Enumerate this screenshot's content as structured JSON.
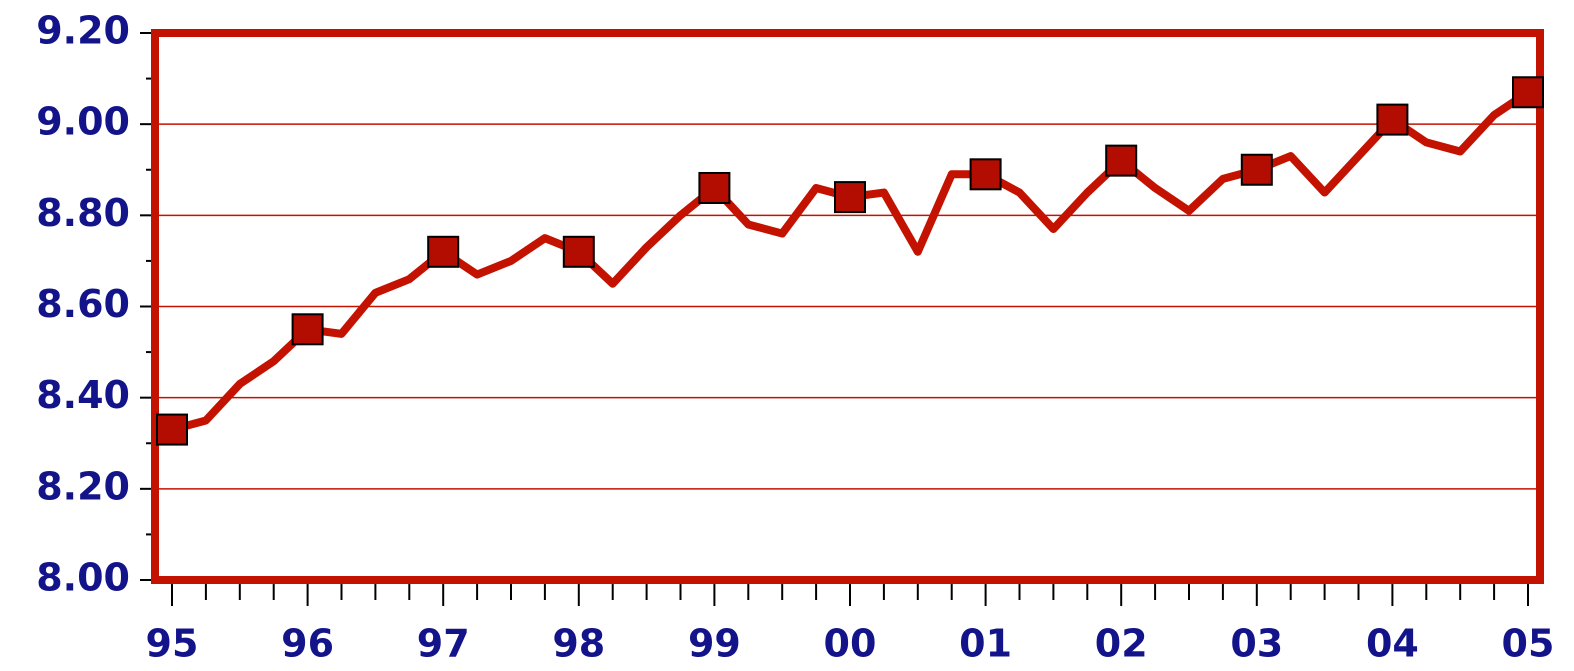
{
  "chart_data": {
    "type": "line",
    "categories": [
      "95",
      null,
      null,
      null,
      "96",
      null,
      null,
      null,
      "97",
      null,
      null,
      null,
      "98",
      null,
      null,
      null,
      "99",
      null,
      null,
      null,
      "00",
      null,
      null,
      null,
      "01",
      null,
      null,
      null,
      "02",
      null,
      null,
      null,
      "03",
      null,
      null,
      null,
      "04",
      null,
      null,
      null,
      "05"
    ],
    "series": [
      {
        "color": "#c41200",
        "marker_color": "#b30c00",
        "values": [
          8.33,
          8.35,
          8.43,
          8.48,
          8.55,
          8.54,
          8.63,
          8.66,
          8.72,
          8.67,
          8.7,
          8.75,
          8.72,
          8.65,
          8.73,
          8.8,
          8.86,
          8.78,
          8.76,
          8.86,
          8.84,
          8.85,
          8.72,
          8.89,
          8.89,
          8.85,
          8.77,
          8.85,
          8.92,
          8.86,
          8.81,
          8.88,
          8.9,
          8.93,
          8.85,
          8.93,
          9.01,
          8.96,
          8.94,
          9.02,
          9.07
        ]
      }
    ],
    "ylim": [
      8.0,
      9.2
    ],
    "yticks": [
      {
        "value": 8.0,
        "label": "8.00"
      },
      {
        "value": 8.2,
        "label": "8.20"
      },
      {
        "value": 8.4,
        "label": "8.40"
      },
      {
        "value": 8.6,
        "label": "8.60"
      },
      {
        "value": 8.8,
        "label": "8.80"
      },
      {
        "value": 9.0,
        "label": "9.00"
      },
      {
        "value": 9.2,
        "label": "9.20"
      }
    ],
    "grid": true
  }
}
